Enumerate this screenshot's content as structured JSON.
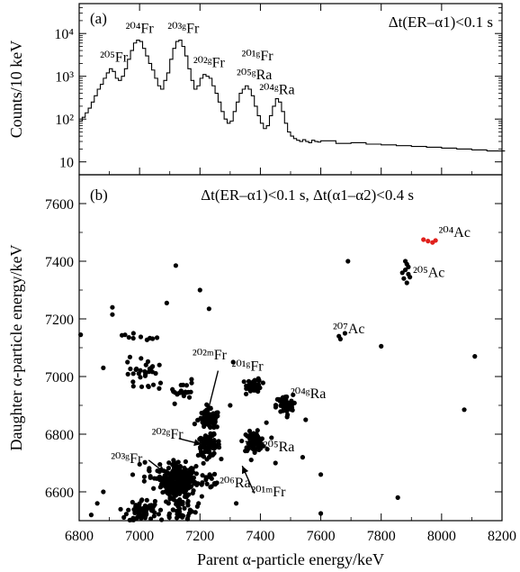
{
  "chart_data": [
    {
      "type": "line",
      "panel_label": "(a)",
      "annotation": "Δt(ER–α1)<0.1 s",
      "ylabel": "Counts/10 keV",
      "yscale": "log",
      "ylim": [
        5,
        50000
      ],
      "xlim": [
        6800,
        8200
      ],
      "y_ticks": [
        {
          "value": 10,
          "label": "10"
        },
        {
          "value": 100,
          "label": "10²"
        },
        {
          "value": 1000,
          "label": "10³"
        },
        {
          "value": 10000,
          "label": "10⁴"
        }
      ],
      "series": [
        {
          "x": [
            6800,
            6810,
            6820,
            6830,
            6840,
            6850,
            6860,
            6870,
            6880,
            6890,
            6900,
            6910,
            6920,
            6930,
            6940,
            6950,
            6960,
            6970,
            6980,
            6990,
            7000,
            7010,
            7020,
            7030,
            7040,
            7050,
            7060,
            7070,
            7080,
            7090,
            7100,
            7110,
            7120,
            7130,
            7140,
            7150,
            7160,
            7170,
            7180,
            7190,
            7200,
            7210,
            7220,
            7230,
            7240,
            7250,
            7260,
            7270,
            7280,
            7290,
            7300,
            7310,
            7320,
            7330,
            7340,
            7350,
            7360,
            7370,
            7380,
            7390,
            7400,
            7410,
            7420,
            7430,
            7440,
            7450,
            7460,
            7470,
            7480,
            7490,
            7500,
            7510,
            7520,
            7530,
            7540,
            7550,
            7560,
            7570,
            7580,
            7590,
            7600,
            7650,
            7700,
            7750,
            7800,
            7850,
            7900,
            7950,
            8000,
            8050,
            8100,
            8150,
            8200
          ],
          "values": [
            90,
            110,
            140,
            180,
            250,
            350,
            500,
            650,
            900,
            1200,
            1500,
            1300,
            900,
            800,
            1000,
            1500,
            2500,
            4000,
            6000,
            7000,
            6500,
            4500,
            3000,
            2000,
            1400,
            900,
            600,
            500,
            800,
            1200,
            2500,
            4500,
            6500,
            7000,
            5000,
            3000,
            1500,
            800,
            500,
            600,
            900,
            1100,
            1000,
            900,
            600,
            400,
            250,
            150,
            100,
            80,
            90,
            150,
            250,
            400,
            500,
            600,
            500,
            350,
            200,
            120,
            80,
            60,
            70,
            120,
            200,
            300,
            250,
            150,
            80,
            50,
            40,
            35,
            32,
            30,
            33,
            30,
            28,
            32,
            30,
            29,
            31,
            27,
            28,
            26,
            25,
            24,
            23,
            22,
            21,
            20,
            19,
            18,
            18
          ]
        }
      ],
      "peak_labels": [
        {
          "label": "²⁰⁵Fr",
          "x": 6915,
          "y": 1500
        },
        {
          "label": "²⁰⁴Fr",
          "x": 7000,
          "y": 7000
        },
        {
          "label": "²⁰³ᵍFr",
          "x": 7145,
          "y": 7000
        },
        {
          "label": "²⁰²ᵍFr",
          "x": 7230,
          "y": 1100
        },
        {
          "label": "²⁰¹ᵍFr",
          "x": 7390,
          "y": 1600
        },
        {
          "label": "²⁰⁵ᵍRa",
          "x": 7380,
          "y": 580
        },
        {
          "label": "²⁰⁴ᵍRa",
          "x": 7455,
          "y": 260
        }
      ]
    },
    {
      "type": "scatter",
      "panel_label": "(b)",
      "annotation": "Δt(ER–α1)<0.1 s,  Δt(α1–α2)<0.4 s",
      "xlabel": "Parent α-particle energy/keV",
      "ylabel": "Daughter α-particle energy/keV",
      "xlim": [
        6800,
        8200
      ],
      "ylim": [
        6500,
        7700
      ],
      "x_ticks": [
        6800,
        7000,
        7200,
        7400,
        7600,
        7800,
        8000,
        8200
      ],
      "y_ticks": [
        6600,
        6800,
        7000,
        7200,
        7400,
        7600
      ],
      "highlight_color": "#e0201c",
      "clusters": [
        {
          "label": "²⁰³ᵍFr",
          "x": 7130,
          "y": 6640,
          "n": 260,
          "sx": 28,
          "sy": 28
        },
        {
          "label": "²⁰²ᵍFr",
          "x": 7230,
          "y": 6760,
          "n": 90,
          "sx": 18,
          "sy": 18
        },
        {
          "label": "²⁰²ᵐFr",
          "x": 7230,
          "y": 6850,
          "n": 90,
          "sx": 18,
          "sy": 16
        },
        {
          "label": "²⁰¹ᵍFr",
          "x": 7380,
          "y": 6970,
          "n": 50,
          "sx": 12,
          "sy": 12
        },
        {
          "label": "²⁰⁵Ra",
          "x": 7380,
          "y": 6775,
          "n": 70,
          "sx": 18,
          "sy": 16
        },
        {
          "label": "²⁰⁴ᵍRa",
          "x": 7480,
          "y": 6900,
          "n": 65,
          "sx": 14,
          "sy": 18
        },
        {
          "label": "²⁰⁶Ra",
          "x": 7240,
          "y": 6640,
          "n": 15,
          "sx": 20,
          "sy": 16
        },
        {
          "label": "",
          "x": 7010,
          "y": 6535,
          "n": 70,
          "sx": 25,
          "sy": 20
        },
        {
          "label": "",
          "x": 7130,
          "y": 6540,
          "n": 50,
          "sx": 30,
          "sy": 25
        },
        {
          "label": "",
          "x": 7050,
          "y": 6650,
          "n": 30,
          "sx": 40,
          "sy": 30
        },
        {
          "label": "",
          "x": 7010,
          "y": 7010,
          "n": 28,
          "sx": 25,
          "sy": 30
        },
        {
          "label": "",
          "x": 7000,
          "y": 7140,
          "n": 10,
          "sx": 30,
          "sy": 8
        },
        {
          "label": "",
          "x": 7130,
          "y": 6950,
          "n": 22,
          "sx": 30,
          "sy": 20
        }
      ],
      "points": [
        {
          "x": 7885,
          "y": 7390
        },
        {
          "x": 7880,
          "y": 7370
        },
        {
          "x": 7890,
          "y": 7355
        },
        {
          "x": 7875,
          "y": 7340
        },
        {
          "x": 7885,
          "y": 7325
        },
        {
          "x": 7880,
          "y": 7400
        },
        {
          "x": 7890,
          "y": 7380
        },
        {
          "x": 7870,
          "y": 7360
        },
        {
          "x": 7895,
          "y": 7345
        },
        {
          "x": 7660,
          "y": 7140
        },
        {
          "x": 7665,
          "y": 7130
        },
        {
          "x": 7680,
          "y": 7150
        },
        {
          "x": 7690,
          "y": 7400
        },
        {
          "x": 7800,
          "y": 7105
        },
        {
          "x": 8110,
          "y": 7070
        },
        {
          "x": 8075,
          "y": 6885
        },
        {
          "x": 7855,
          "y": 6580
        },
        {
          "x": 7600,
          "y": 6525
        },
        {
          "x": 7600,
          "y": 6660
        },
        {
          "x": 7120,
          "y": 7385
        },
        {
          "x": 7230,
          "y": 7235
        },
        {
          "x": 6910,
          "y": 7240
        },
        {
          "x": 6910,
          "y": 7215
        },
        {
          "x": 6805,
          "y": 7145
        },
        {
          "x": 6880,
          "y": 7030
        },
        {
          "x": 7090,
          "y": 7255
        },
        {
          "x": 7310,
          "y": 7050
        },
        {
          "x": 7200,
          "y": 7300
        },
        {
          "x": 6960,
          "y": 7050
        },
        {
          "x": 7420,
          "y": 6840
        },
        {
          "x": 7550,
          "y": 6850
        },
        {
          "x": 7540,
          "y": 6720
        },
        {
          "x": 7450,
          "y": 6700
        },
        {
          "x": 6880,
          "y": 6600
        },
        {
          "x": 6860,
          "y": 6560
        },
        {
          "x": 6840,
          "y": 6520
        },
        {
          "x": 7300,
          "y": 6900
        },
        {
          "x": 7320,
          "y": 6560
        }
      ],
      "highlight_points": [
        {
          "x": 7940,
          "y": 7475
        },
        {
          "x": 7955,
          "y": 7470
        },
        {
          "x": 7970,
          "y": 7465
        },
        {
          "x": 7980,
          "y": 7472
        }
      ],
      "point_labels": [
        {
          "label": "²⁰⁴Ac",
          "x": 7990,
          "y": 7485,
          "highlight": true
        },
        {
          "label": "²⁰⁵Ac",
          "x": 7905,
          "y": 7345
        },
        {
          "label": "²⁰⁷Ac",
          "x": 7640,
          "y": 7150
        },
        {
          "label": "²⁰²ᵐFr",
          "x": 7175,
          "y": 7060
        },
        {
          "label": "²⁰¹ᵍFr",
          "x": 7305,
          "y": 7020
        },
        {
          "label": "²⁰⁴ᵍRa",
          "x": 7500,
          "y": 6925
        },
        {
          "label": "²⁰²ᵍFr",
          "x": 7040,
          "y": 6785
        },
        {
          "label": "²⁰⁵Ra",
          "x": 7410,
          "y": 6740
        },
        {
          "label": "²⁰³ᵍFr",
          "x": 6905,
          "y": 6700
        },
        {
          "label": "²⁰⁶Ra",
          "x": 7265,
          "y": 6615
        },
        {
          "label": "²⁰¹ᵐFr",
          "x": 7370,
          "y": 6585
        }
      ],
      "arrows": [
        {
          "from": [
            7260,
            7020
          ],
          "to": [
            7225,
            6875
          ]
        },
        {
          "from": [
            7130,
            6785
          ],
          "to": [
            7205,
            6765
          ]
        },
        {
          "from": [
            7405,
            6758
          ],
          "to": [
            7350,
            6775
          ]
        },
        {
          "from": [
            7380,
            6595
          ],
          "to": [
            7340,
            6690
          ]
        },
        {
          "from": [
            7030,
            6710
          ],
          "to": [
            7085,
            6665
          ]
        }
      ]
    }
  ]
}
